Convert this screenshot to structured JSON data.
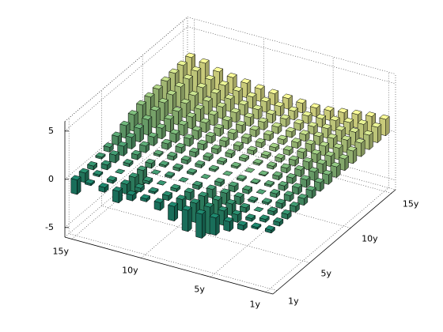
{
  "chart_data": {
    "type": "bar3",
    "x_categories": [
      "1y",
      null,
      null,
      null,
      "5y",
      null,
      null,
      null,
      null,
      "10y",
      null,
      null,
      null,
      null,
      "15y"
    ],
    "y_categories": [
      "1y",
      null,
      null,
      null,
      "5y",
      null,
      null,
      null,
      null,
      "10y",
      null,
      null,
      null,
      null,
      "15y"
    ],
    "values": [
      [
        0.3,
        0.2,
        -0.5,
        -1.0,
        -1.8,
        -2.5,
        -2.2,
        -1.5,
        -0.8,
        -0.3,
        -0.6,
        -1.2,
        -0.5,
        -0.2,
        -1.5
      ],
      [
        0.4,
        0.3,
        -0.3,
        -0.8,
        -1.5,
        -2.8,
        -2.0,
        -1.2,
        -0.5,
        -0.2,
        -0.4,
        -1.0,
        -0.3,
        0.2,
        -1.0
      ],
      [
        0.5,
        0.4,
        0.0,
        -0.5,
        -1.2,
        -2.0,
        -1.5,
        -0.8,
        -0.3,
        0.0,
        -0.3,
        -1.8,
        0.0,
        0.5,
        -0.4
      ],
      [
        0.6,
        0.5,
        0.2,
        -0.2,
        -0.8,
        -1.2,
        -0.9,
        -0.4,
        0.0,
        0.2,
        0.0,
        -1.5,
        0.3,
        0.8,
        0.2
      ],
      [
        0.7,
        0.6,
        0.4,
        0.0,
        -0.4,
        -0.6,
        -0.4,
        0.0,
        0.2,
        0.3,
        0.2,
        -0.5,
        0.5,
        1.0,
        0.5
      ],
      [
        0.8,
        0.7,
        0.5,
        0.2,
        -0.1,
        -0.2,
        0.0,
        0.2,
        0.3,
        0.4,
        0.4,
        0.2,
        0.7,
        1.2,
        0.9
      ],
      [
        0.9,
        0.8,
        0.6,
        0.4,
        0.1,
        0.0,
        0.2,
        0.3,
        0.4,
        0.5,
        0.6,
        0.6,
        0.9,
        1.4,
        1.3
      ],
      [
        1.0,
        0.9,
        0.7,
        0.5,
        0.3,
        0.2,
        0.3,
        0.4,
        0.5,
        0.6,
        0.8,
        0.9,
        1.1,
        1.6,
        1.7
      ],
      [
        1.1,
        1.0,
        0.8,
        0.6,
        0.4,
        0.3,
        0.4,
        0.5,
        0.6,
        0.7,
        0.9,
        1.1,
        1.3,
        1.8,
        2.0
      ],
      [
        1.2,
        1.1,
        0.9,
        0.7,
        0.5,
        0.4,
        0.5,
        0.6,
        0.7,
        0.8,
        1.0,
        1.2,
        1.4,
        1.9,
        2.1
      ],
      [
        1.3,
        1.2,
        1.0,
        0.8,
        0.6,
        0.5,
        0.6,
        0.7,
        0.8,
        0.9,
        1.1,
        1.3,
        1.5,
        2.0,
        2.2
      ],
      [
        1.4,
        1.3,
        1.1,
        0.9,
        0.7,
        0.6,
        0.7,
        0.8,
        0.9,
        1.0,
        1.2,
        1.4,
        1.6,
        2.1,
        2.3
      ],
      [
        1.5,
        1.4,
        1.2,
        1.0,
        0.8,
        0.7,
        0.8,
        0.9,
        1.0,
        1.1,
        1.3,
        1.5,
        1.7,
        2.2,
        2.4
      ],
      [
        1.6,
        1.5,
        1.3,
        1.1,
        0.9,
        0.8,
        0.9,
        1.0,
        1.1,
        1.2,
        1.4,
        1.6,
        1.8,
        2.3,
        2.5
      ],
      [
        1.7,
        1.6,
        1.4,
        1.2,
        1.0,
        0.9,
        1.0,
        1.1,
        1.2,
        1.3,
        1.5,
        1.7,
        1.9,
        2.4,
        2.6
      ]
    ],
    "colors": [
      "#1f8a70",
      "#2a9070",
      "#369772",
      "#439e74",
      "#51a676",
      "#60ae79",
      "#70b77c",
      "#81c07f",
      "#93c983",
      "#a5d287",
      "#b7db8b",
      "#c9e38f",
      "#daec93",
      "#ebf596",
      "#fbfd99"
    ],
    "zlim": [
      -6,
      6
    ],
    "zticks": [
      -5,
      0,
      5
    ],
    "grid": true
  }
}
